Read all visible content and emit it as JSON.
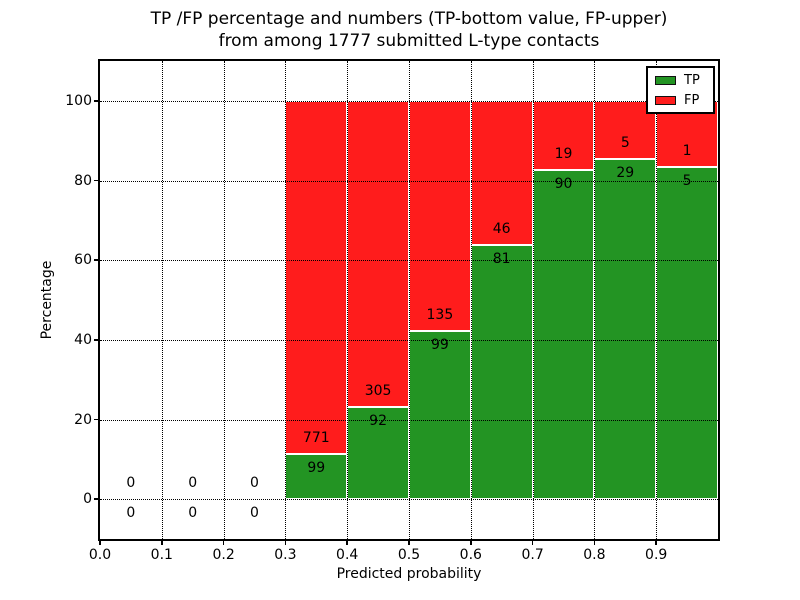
{
  "figure": {
    "title_line1": "TP /FP percentage and numbers (TP-bottom value, FP-upper)",
    "title_line2": "from among 1777 submitted L-type contacts",
    "xlabel": "Predicted probability",
    "ylabel": "Percentage"
  },
  "legend": {
    "position": "upper right",
    "items": [
      {
        "label": "TP",
        "color": "#239423"
      },
      {
        "label": "FP",
        "color": "#ff1c1c"
      }
    ]
  },
  "chart_data": {
    "type": "bar",
    "stacked": true,
    "normalized_to_100_percent": true,
    "title": "TP /FP percentage and numbers (TP-bottom value, FP-upper)\nfrom among 1777 submitted L-type contacts",
    "xlabel": "Predicted probability",
    "ylabel": "Percentage",
    "xlim": [
      0.0,
      1.0
    ],
    "ylim": [
      -10,
      110
    ],
    "x_tick_labels": [
      "0.0",
      "0.1",
      "0.2",
      "0.3",
      "0.4",
      "0.5",
      "0.6",
      "0.7",
      "0.8",
      "0.9"
    ],
    "y_tick_labels": [
      "0",
      "20",
      "40",
      "60",
      "80",
      "100"
    ],
    "grid": "dotted",
    "grid_above_bars": true,
    "legend_position": "upper right",
    "bin_width": 0.1,
    "total_contacts": 1777,
    "series": [
      {
        "name": "TP",
        "color": "#239423",
        "role": "bottom"
      },
      {
        "name": "FP",
        "color": "#ff1c1c",
        "role": "top"
      }
    ],
    "bins": [
      {
        "x_start": 0.0,
        "tp": 0,
        "fp": 0,
        "tp_pct": null
      },
      {
        "x_start": 0.1,
        "tp": 0,
        "fp": 0,
        "tp_pct": null
      },
      {
        "x_start": 0.2,
        "tp": 0,
        "fp": 0,
        "tp_pct": null
      },
      {
        "x_start": 0.3,
        "tp": 99,
        "fp": 771,
        "tp_pct": 11.38
      },
      {
        "x_start": 0.4,
        "tp": 92,
        "fp": 305,
        "tp_pct": 23.17
      },
      {
        "x_start": 0.5,
        "tp": 99,
        "fp": 135,
        "tp_pct": 42.31
      },
      {
        "x_start": 0.6,
        "tp": 81,
        "fp": 46,
        "tp_pct": 63.78
      },
      {
        "x_start": 0.7,
        "tp": 90,
        "fp": 19,
        "tp_pct": 82.57
      },
      {
        "x_start": 0.8,
        "tp": 29,
        "fp": 5,
        "tp_pct": 85.29
      },
      {
        "x_start": 0.9,
        "tp": 5,
        "fp": 1,
        "tp_pct": 83.33
      }
    ]
  }
}
